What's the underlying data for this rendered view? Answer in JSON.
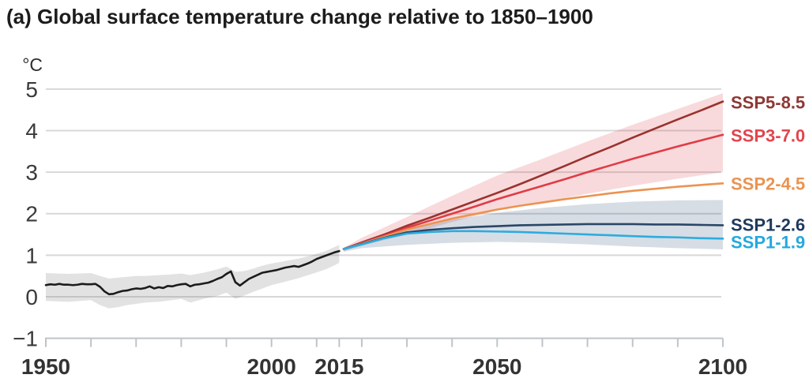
{
  "title": "(a) Global surface temperature change relative to 1850–1900",
  "unit_label": "°C",
  "chart_data": {
    "type": "line",
    "title": "(a) Global surface temperature change relative to 1850–1900",
    "ylabel": "°C",
    "xlim": [
      1950,
      2100
    ],
    "ylim": [
      -1,
      5
    ],
    "grid": "horizontal",
    "legend_position": "right-of-plot",
    "x_ticks": [
      1950,
      1960,
      1970,
      1980,
      1990,
      2000,
      2010,
      2015,
      2020,
      2030,
      2040,
      2050,
      2060,
      2070,
      2080,
      2090,
      2100
    ],
    "x_labeled_ticks": [
      1950,
      2000,
      2015,
      2050,
      2100
    ],
    "y_ticks": [
      5,
      4,
      3,
      2,
      1,
      0,
      -1
    ],
    "y_tick_labels": [
      "5",
      "4",
      "3",
      "2",
      "1",
      "0",
      "−1"
    ],
    "bands": [
      {
        "name": "historical-uncertainty",
        "fill": "rgba(125,125,125,0.22)",
        "x": [
          1950,
          1955,
          1960,
          1962,
          1964,
          1966,
          1968,
          1970,
          1972,
          1975,
          1978,
          1980,
          1982,
          1985,
          1988,
          1990,
          1992,
          1994,
          1996,
          1998,
          2000,
          2003,
          2006,
          2009,
          2012,
          2014,
          2015
        ],
        "top": [
          0.57,
          0.55,
          0.57,
          0.5,
          0.44,
          0.46,
          0.48,
          0.5,
          0.5,
          0.52,
          0.54,
          0.56,
          0.52,
          0.58,
          0.66,
          0.73,
          0.6,
          0.62,
          0.68,
          0.75,
          0.8,
          0.86,
          0.92,
          1.0,
          1.1,
          1.2,
          1.25
        ],
        "bottom": [
          -0.1,
          -0.12,
          -0.08,
          -0.2,
          -0.28,
          -0.25,
          -0.2,
          -0.17,
          -0.14,
          -0.12,
          -0.08,
          -0.05,
          -0.14,
          -0.05,
          0.02,
          0.1,
          -0.05,
          0.03,
          0.12,
          0.2,
          0.28,
          0.36,
          0.45,
          0.55,
          0.66,
          0.76,
          0.82
        ]
      },
      {
        "name": "ssp3-7.0-very-likely-range",
        "fill": "rgba(222,70,80,0.20)",
        "x": [
          2016,
          2020,
          2030,
          2040,
          2050,
          2060,
          2070,
          2080,
          2090,
          2100
        ],
        "top": [
          1.18,
          1.42,
          1.92,
          2.43,
          2.92,
          3.32,
          3.74,
          4.14,
          4.52,
          4.9
        ],
        "bottom": [
          1.1,
          1.23,
          1.5,
          1.8,
          2.08,
          2.28,
          2.48,
          2.67,
          2.84,
          3.0
        ]
      },
      {
        "name": "ssp1-2.6-very-likely-range",
        "fill": "rgba(45,75,115,0.19)",
        "x": [
          2016,
          2020,
          2030,
          2040,
          2050,
          2060,
          2070,
          2080,
          2090,
          2100
        ],
        "top": [
          1.17,
          1.3,
          1.6,
          1.85,
          2.02,
          2.14,
          2.23,
          2.29,
          2.32,
          2.33
        ],
        "bottom": [
          1.08,
          1.17,
          1.25,
          1.3,
          1.32,
          1.3,
          1.26,
          1.21,
          1.17,
          1.14
        ]
      }
    ],
    "series": [
      {
        "name": "historical",
        "color": "#1c1c1c",
        "width": 2.6,
        "x_start": 1950,
        "x_step": 1,
        "values": [
          0.28,
          0.3,
          0.29,
          0.31,
          0.29,
          0.29,
          0.28,
          0.29,
          0.31,
          0.3,
          0.3,
          0.31,
          0.24,
          0.13,
          0.06,
          0.07,
          0.11,
          0.14,
          0.15,
          0.18,
          0.2,
          0.19,
          0.21,
          0.25,
          0.2,
          0.23,
          0.21,
          0.26,
          0.25,
          0.28,
          0.3,
          0.31,
          0.25,
          0.29,
          0.3,
          0.32,
          0.34,
          0.38,
          0.43,
          0.47,
          0.55,
          0.61,
          0.35,
          0.27,
          0.35,
          0.43,
          0.48,
          0.53,
          0.58,
          0.6,
          0.62,
          0.64,
          0.67,
          0.7,
          0.72,
          0.74,
          0.72,
          0.76,
          0.8,
          0.85,
          0.91,
          0.95,
          0.99,
          1.03,
          1.07,
          1.1
        ]
      },
      {
        "name": "SSP5-8.5",
        "color": "#9b322e",
        "width": 2.6,
        "x": [
          2016,
          2020,
          2025,
          2030,
          2035,
          2040,
          2045,
          2050,
          2055,
          2060,
          2065,
          2070,
          2075,
          2080,
          2085,
          2090,
          2095,
          2100
        ],
        "values": [
          1.15,
          1.31,
          1.5,
          1.71,
          1.9,
          2.1,
          2.3,
          2.5,
          2.71,
          2.93,
          3.15,
          3.38,
          3.6,
          3.83,
          4.05,
          4.27,
          4.48,
          4.7
        ]
      },
      {
        "name": "SSP3-7.0",
        "color": "#e13b46",
        "width": 2.6,
        "x": [
          2016,
          2020,
          2025,
          2030,
          2035,
          2040,
          2045,
          2050,
          2055,
          2060,
          2065,
          2070,
          2075,
          2080,
          2085,
          2090,
          2095,
          2100
        ],
        "values": [
          1.15,
          1.29,
          1.47,
          1.66,
          1.83,
          2.0,
          2.17,
          2.35,
          2.51,
          2.67,
          2.83,
          3.0,
          3.16,
          3.32,
          3.47,
          3.62,
          3.76,
          3.9
        ]
      },
      {
        "name": "SSP2-4.5",
        "color": "#eb9351",
        "width": 2.6,
        "x": [
          2016,
          2020,
          2025,
          2030,
          2035,
          2040,
          2045,
          2050,
          2055,
          2060,
          2065,
          2070,
          2075,
          2080,
          2085,
          2090,
          2095,
          2100
        ],
        "values": [
          1.15,
          1.28,
          1.45,
          1.62,
          1.75,
          1.88,
          1.99,
          2.1,
          2.19,
          2.27,
          2.35,
          2.42,
          2.49,
          2.55,
          2.6,
          2.65,
          2.69,
          2.73
        ]
      },
      {
        "name": "SSP1-2.6",
        "color": "#2a4767",
        "width": 2.6,
        "x": [
          2016,
          2020,
          2025,
          2030,
          2035,
          2040,
          2045,
          2050,
          2055,
          2060,
          2065,
          2070,
          2075,
          2080,
          2085,
          2090,
          2095,
          2100
        ],
        "values": [
          1.15,
          1.27,
          1.42,
          1.55,
          1.61,
          1.65,
          1.68,
          1.7,
          1.72,
          1.73,
          1.74,
          1.75,
          1.75,
          1.75,
          1.74,
          1.74,
          1.73,
          1.72
        ]
      },
      {
        "name": "SSP1-1.9",
        "color": "#2cacdf",
        "width": 2.6,
        "x": [
          2016,
          2020,
          2025,
          2030,
          2035,
          2040,
          2045,
          2050,
          2055,
          2060,
          2065,
          2070,
          2075,
          2080,
          2085,
          2090,
          2095,
          2100
        ],
        "values": [
          1.15,
          1.26,
          1.41,
          1.52,
          1.56,
          1.58,
          1.58,
          1.57,
          1.56,
          1.54,
          1.52,
          1.5,
          1.48,
          1.46,
          1.44,
          1.43,
          1.41,
          1.4
        ]
      }
    ]
  },
  "legend": [
    {
      "label": "SSP5-8.5",
      "color": "#8e3834",
      "series": "SSP5-8.5"
    },
    {
      "label": "SSP3-7.0",
      "color": "#e2444d",
      "series": "SSP3-7.0"
    },
    {
      "label": "SSP2-4.5",
      "color": "#ea9351",
      "series": "SSP2-4.5"
    },
    {
      "label": "SSP1-2.6",
      "color": "#1f3a5c",
      "series": "SSP1-2.6"
    },
    {
      "label": "SSP1-1.9",
      "color": "#25a8de",
      "series": "SSP1-1.9"
    }
  ]
}
